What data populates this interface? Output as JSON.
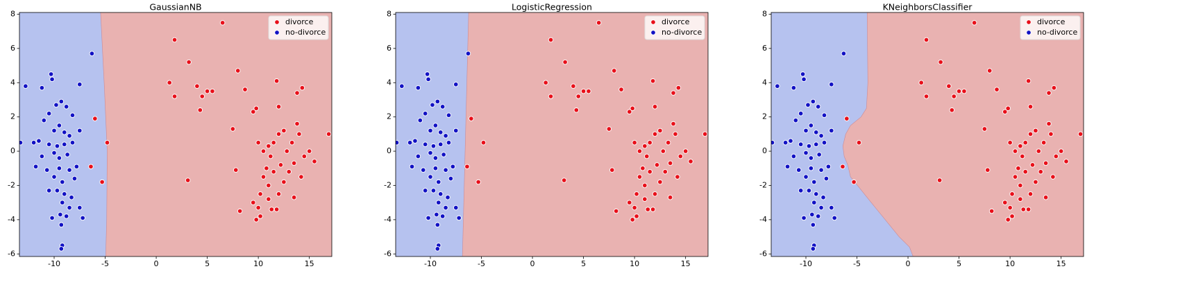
{
  "chart_data": [
    {
      "type": "scatter",
      "title": "GaussianNB",
      "xlim": [
        -13.4,
        17.2
      ],
      "ylim": [
        -6.15,
        8.1
      ],
      "xticks": [
        -10,
        -5,
        0,
        5,
        10,
        15
      ],
      "yticks": [
        -6,
        -4,
        -2,
        0,
        2,
        4,
        6,
        8
      ],
      "legend": "upper right",
      "region_colors": [
        "#e9b2b1",
        "#b6c2ef"
      ],
      "boundary": {
        "x": [
          -5.45,
          -5.1,
          -4.8,
          -4.85,
          -4.95
        ],
        "y": [
          8.1,
          4,
          0,
          -4,
          -6.15
        ]
      },
      "series": [
        {
          "name": "divorce",
          "color": "#e8101a",
          "x": [
            6.5,
            1.8,
            3.2,
            1.3,
            1.8,
            4,
            4.5,
            5,
            5.5,
            4.3,
            8,
            8.7,
            11.8,
            14.3,
            13.8,
            7.5,
            3.1,
            7.8,
            8.2,
            -4.8,
            -5.3,
            -6,
            -6.4,
            16.9,
            15.5,
            15,
            12,
            9.8,
            9.5,
            10,
            10.5,
            11,
            11.2,
            10.8,
            10.5,
            11,
            10.2,
            9.5,
            10,
            9.8,
            10.2,
            11.3,
            11.8,
            11,
            12,
            12.5,
            13,
            13.5,
            12.8,
            13.3,
            14,
            13.8,
            12.5,
            12,
            11.5,
            12.2,
            13.5,
            14.5,
            14.2,
            11.5
          ],
          "values": [
            7.5,
            6.5,
            5.2,
            4,
            3.2,
            3.8,
            3.2,
            3.5,
            3.5,
            2.4,
            4.7,
            3.6,
            4.1,
            3.7,
            3.4,
            1.3,
            -1.7,
            -1.1,
            -3.5,
            0.5,
            -1.8,
            1.9,
            -0.9,
            1,
            -0.6,
            0,
            2.6,
            2.5,
            2.3,
            0.5,
            0,
            0.3,
            -0.3,
            -1,
            -1.5,
            -2,
            -2.5,
            -3,
            -3.3,
            -4,
            -3.8,
            -3.4,
            -3.4,
            -2.8,
            -2.5,
            -1.8,
            -1.2,
            -0.7,
            0,
            0.5,
            1,
            1.6,
            1.2,
            1,
            0.5,
            -0.8,
            -2.7,
            -0.3,
            -1.5,
            -1.2
          ]
        },
        {
          "name": "no-divorce",
          "color": "#1212c4",
          "x": [
            -6.3,
            -10.3,
            -10.2,
            -12.8,
            -11.2,
            -7.5,
            -9.3,
            -9.8,
            -8.8,
            -10.5,
            -8.2,
            -11,
            -9.5,
            -10,
            -9,
            -7.5,
            -8.5,
            -11.5,
            -13.3,
            -12,
            -10.5,
            -9.7,
            -9,
            -8.2,
            -10,
            -9.5,
            -8.7,
            -11.8,
            -10.7,
            -9.5,
            -8.5,
            -7.8,
            -10,
            -9.2,
            -8,
            -9.7,
            -9,
            -8.3,
            -10.5,
            -9.2,
            -8.5,
            -7.5,
            -9.4,
            -8.8,
            -10.2,
            -7.2,
            -9.3,
            -9.2,
            -9.3,
            -11.2
          ],
          "values": [
            5.7,
            4.5,
            4.2,
            3.8,
            3.7,
            3.9,
            2.9,
            2.7,
            2.6,
            2.2,
            2.1,
            1.8,
            1.5,
            1.2,
            1.1,
            1.2,
            0.9,
            0.6,
            0.5,
            0.5,
            0.4,
            0.3,
            0.4,
            0.5,
            -0.1,
            -0.4,
            -0.2,
            -0.9,
            -1.1,
            -1,
            -1.1,
            -0.9,
            -1.5,
            -1.8,
            -1.6,
            -2.3,
            -2.5,
            -2.7,
            -2.3,
            -3,
            -3.3,
            -3.3,
            -3.7,
            -3.8,
            -3.9,
            -3.9,
            -4.3,
            -5.5,
            -5.7,
            -0.3
          ]
        }
      ]
    },
    {
      "type": "scatter",
      "title": "LogisticRegression",
      "xlim": [
        -13.4,
        17.2
      ],
      "ylim": [
        -6.15,
        8.1
      ],
      "xticks": [
        -10,
        -5,
        0,
        5,
        10,
        15
      ],
      "yticks": [
        -6,
        -4,
        -2,
        0,
        2,
        4,
        6,
        8
      ],
      "legend": "upper right",
      "region_colors": [
        "#e9b2b1",
        "#b6c2ef"
      ],
      "boundary": {
        "x": [
          -6.25,
          -6.86
        ],
        "y": [
          8.1,
          -6.15
        ]
      },
      "series": [
        {
          "name": "divorce",
          "color": "#e8101a",
          "x": [
            6.5,
            1.8,
            3.2,
            1.3,
            1.8,
            4,
            4.5,
            5,
            5.5,
            4.3,
            8,
            8.7,
            11.8,
            14.3,
            13.8,
            7.5,
            3.1,
            7.8,
            8.2,
            -4.8,
            -5.3,
            -6,
            -6.4,
            16.9,
            15.5,
            15,
            12,
            9.8,
            9.5,
            10,
            10.5,
            11,
            11.2,
            10.8,
            10.5,
            11,
            10.2,
            9.5,
            10,
            9.8,
            10.2,
            11.3,
            11.8,
            11,
            12,
            12.5,
            13,
            13.5,
            12.8,
            13.3,
            14,
            13.8,
            12.5,
            12,
            11.5,
            12.2,
            13.5,
            14.5,
            14.2,
            11.5
          ],
          "values": [
            7.5,
            6.5,
            5.2,
            4,
            3.2,
            3.8,
            3.2,
            3.5,
            3.5,
            2.4,
            4.7,
            3.6,
            4.1,
            3.7,
            3.4,
            1.3,
            -1.7,
            -1.1,
            -3.5,
            0.5,
            -1.8,
            1.9,
            -0.9,
            1,
            -0.6,
            0,
            2.6,
            2.5,
            2.3,
            0.5,
            0,
            0.3,
            -0.3,
            -1,
            -1.5,
            -2,
            -2.5,
            -3,
            -3.3,
            -4,
            -3.8,
            -3.4,
            -3.4,
            -2.8,
            -2.5,
            -1.8,
            -1.2,
            -0.7,
            0,
            0.5,
            1,
            1.6,
            1.2,
            1,
            0.5,
            -0.8,
            -2.7,
            -0.3,
            -1.5,
            -1.2
          ]
        },
        {
          "name": "no-divorce",
          "color": "#1212c4",
          "x": [
            -6.3,
            -10.3,
            -10.2,
            -12.8,
            -11.2,
            -7.5,
            -9.3,
            -9.8,
            -8.8,
            -10.5,
            -8.2,
            -11,
            -9.5,
            -10,
            -9,
            -7.5,
            -8.5,
            -11.5,
            -13.3,
            -12,
            -10.5,
            -9.7,
            -9,
            -8.2,
            -10,
            -9.5,
            -8.7,
            -11.8,
            -10.7,
            -9.5,
            -8.5,
            -7.8,
            -10,
            -9.2,
            -8,
            -9.7,
            -9,
            -8.3,
            -10.5,
            -9.2,
            -8.5,
            -7.5,
            -9.4,
            -8.8,
            -10.2,
            -7.2,
            -9.3,
            -9.2,
            -9.3,
            -11.2
          ],
          "values": [
            5.7,
            4.5,
            4.2,
            3.8,
            3.7,
            3.9,
            2.9,
            2.7,
            2.6,
            2.2,
            2.1,
            1.8,
            1.5,
            1.2,
            1.1,
            1.2,
            0.9,
            0.6,
            0.5,
            0.5,
            0.4,
            0.3,
            0.4,
            0.5,
            -0.1,
            -0.4,
            -0.2,
            -0.9,
            -1.1,
            -1,
            -1.1,
            -0.9,
            -1.5,
            -1.8,
            -1.6,
            -2.3,
            -2.5,
            -2.7,
            -2.3,
            -3,
            -3.3,
            -3.3,
            -3.7,
            -3.8,
            -3.9,
            -3.9,
            -4.3,
            -5.5,
            -5.7,
            -0.3
          ]
        }
      ]
    },
    {
      "type": "scatter",
      "title": "KNeighborsClassifier",
      "xlim": [
        -13.4,
        17.2
      ],
      "ylim": [
        -6.15,
        8.1
      ],
      "xticks": [
        -10,
        -5,
        0,
        5,
        10,
        15
      ],
      "yticks": [
        -6,
        -4,
        -2,
        0,
        2,
        4,
        6,
        8
      ],
      "legend": "upper right",
      "region_colors": [
        "#e9b2b1",
        "#b6c2ef"
      ],
      "boundary": {
        "x": [
          -4.0,
          -3.93,
          -4.07,
          -4.6,
          -5.63,
          -6.1,
          -6.38,
          -6.25,
          -5.9,
          -5.63,
          -4.95,
          -3.6,
          -2.23,
          -0.87,
          0.15,
          0.5
        ],
        "y": [
          8.1,
          4,
          2.5,
          2,
          1.5,
          1,
          0.3,
          -0.3,
          -0.8,
          -1.5,
          -2,
          -3,
          -4,
          -5,
          -5.6,
          -6.15
        ]
      },
      "series": [
        {
          "name": "divorce",
          "color": "#e8101a",
          "x": [
            6.5,
            1.8,
            3.2,
            1.3,
            1.8,
            4,
            4.5,
            5,
            5.5,
            4.3,
            8,
            8.7,
            11.8,
            14.3,
            13.8,
            7.5,
            3.1,
            7.8,
            8.2,
            -4.8,
            -5.3,
            -6,
            -6.4,
            16.9,
            15.5,
            15,
            12,
            9.8,
            9.5,
            10,
            10.5,
            11,
            11.2,
            10.8,
            10.5,
            11,
            10.2,
            9.5,
            10,
            9.8,
            10.2,
            11.3,
            11.8,
            11,
            12,
            12.5,
            13,
            13.5,
            12.8,
            13.3,
            14,
            13.8,
            12.5,
            12,
            11.5,
            12.2,
            13.5,
            14.5,
            14.2,
            11.5
          ],
          "values": [
            7.5,
            6.5,
            5.2,
            4,
            3.2,
            3.8,
            3.2,
            3.5,
            3.5,
            2.4,
            4.7,
            3.6,
            4.1,
            3.7,
            3.4,
            1.3,
            -1.7,
            -1.1,
            -3.5,
            0.5,
            -1.8,
            1.9,
            -0.9,
            1,
            -0.6,
            0,
            2.6,
            2.5,
            2.3,
            0.5,
            0,
            0.3,
            -0.3,
            -1,
            -1.5,
            -2,
            -2.5,
            -3,
            -3.3,
            -4,
            -3.8,
            -3.4,
            -3.4,
            -2.8,
            -2.5,
            -1.8,
            -1.2,
            -0.7,
            0,
            0.5,
            1,
            1.6,
            1.2,
            1,
            0.5,
            -0.8,
            -2.7,
            -0.3,
            -1.5,
            -1.2
          ]
        },
        {
          "name": "no-divorce",
          "color": "#1212c4",
          "x": [
            -6.3,
            -10.3,
            -10.2,
            -12.8,
            -11.2,
            -7.5,
            -9.3,
            -9.8,
            -8.8,
            -10.5,
            -8.2,
            -11,
            -9.5,
            -10,
            -9,
            -7.5,
            -8.5,
            -11.5,
            -13.3,
            -12,
            -10.5,
            -9.7,
            -9,
            -8.2,
            -10,
            -9.5,
            -8.7,
            -11.8,
            -10.7,
            -9.5,
            -8.5,
            -7.8,
            -10,
            -9.2,
            -8,
            -9.7,
            -9,
            -8.3,
            -10.5,
            -9.2,
            -8.5,
            -7.5,
            -9.4,
            -8.8,
            -10.2,
            -7.2,
            -9.3,
            -9.2,
            -9.3,
            -11.2
          ],
          "values": [
            5.7,
            4.5,
            4.2,
            3.8,
            3.7,
            3.9,
            2.9,
            2.7,
            2.6,
            2.2,
            2.1,
            1.8,
            1.5,
            1.2,
            1.1,
            1.2,
            0.9,
            0.6,
            0.5,
            0.5,
            0.4,
            0.3,
            0.4,
            0.5,
            -0.1,
            -0.4,
            -0.2,
            -0.9,
            -1.1,
            -1,
            -1.1,
            -0.9,
            -1.5,
            -1.8,
            -1.6,
            -2.3,
            -2.5,
            -2.7,
            -2.3,
            -3,
            -3.3,
            -3.3,
            -3.7,
            -3.8,
            -3.9,
            -3.9,
            -4.3,
            -5.5,
            -5.7,
            -0.3
          ]
        }
      ]
    }
  ]
}
